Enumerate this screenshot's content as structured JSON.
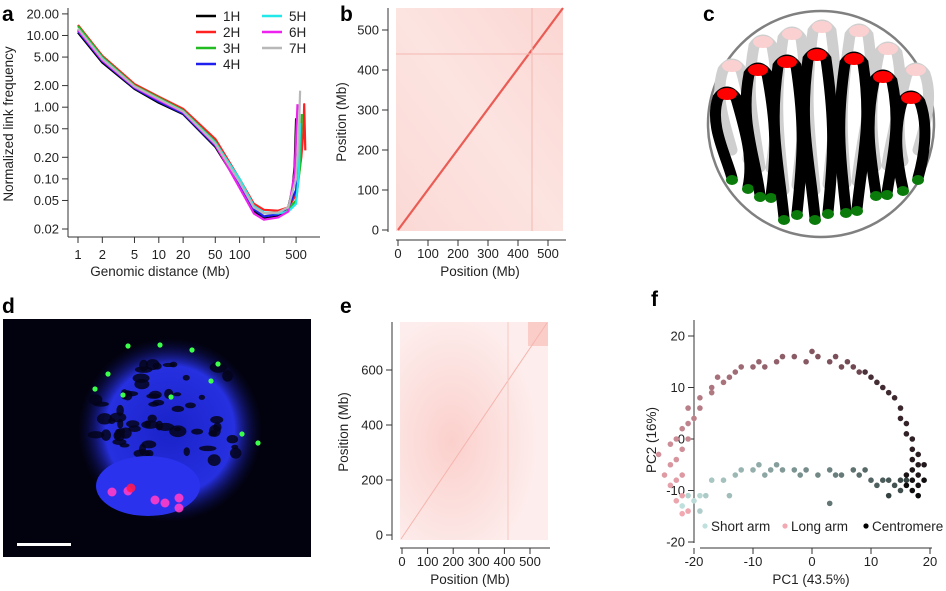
{
  "panel_labels": {
    "a": "a",
    "b": "b",
    "c": "c",
    "d": "d",
    "e": "e",
    "f": "f"
  },
  "chart_data": [
    {
      "id": "a",
      "type": "line",
      "xlabel": "Genomic distance (Mb)",
      "ylabel": "Normalized link frequency",
      "x_scale": "log",
      "y_scale": "log",
      "xlim": [
        0.9,
        800
      ],
      "ylim": [
        0.017,
        24
      ],
      "x_ticks": [
        1,
        2,
        5,
        10,
        20,
        50,
        100,
        200,
        500
      ],
      "x_tick_labels": [
        "1",
        "2",
        "5",
        "10",
        "20",
        "50",
        "100",
        "",
        "500"
      ],
      "y_ticks": [
        20,
        10,
        5,
        2,
        1,
        0.5,
        0.2,
        0.1,
        0.05,
        0.02
      ],
      "y_tick_labels": [
        "20.00",
        "10.00",
        "5.00",
        "2.00",
        "1.00",
        "0.50",
        "0.20",
        "0.10",
        "0.05",
        "0.02"
      ],
      "legend_position": "top-right",
      "series": [
        {
          "name": "1H",
          "color": "#000000",
          "x": [
            1,
            2,
            5,
            10,
            20,
            50,
            100,
            150,
            200,
            300,
            400,
            450,
            480,
            500
          ],
          "y": [
            11,
            4.2,
            1.8,
            1.15,
            0.8,
            0.28,
            0.08,
            0.036,
            0.028,
            0.03,
            0.04,
            0.07,
            0.15,
            0.7
          ]
        },
        {
          "name": "2H",
          "color": "#ff2020",
          "x": [
            1,
            2,
            5,
            10,
            20,
            50,
            100,
            150,
            200,
            300,
            400,
            500,
            580,
            620,
            630,
            650
          ],
          "y": [
            14,
            5.2,
            2.1,
            1.4,
            0.95,
            0.36,
            0.1,
            0.045,
            0.037,
            0.036,
            0.04,
            0.06,
            0.2,
            0.5,
            1.1,
            0.25
          ]
        },
        {
          "name": "3H",
          "color": "#22bb22",
          "x": [
            1,
            2,
            5,
            10,
            20,
            50,
            100,
            150,
            200,
            300,
            400,
            500,
            560,
            590
          ],
          "y": [
            13.5,
            5,
            2,
            1.35,
            0.9,
            0.33,
            0.09,
            0.04,
            0.033,
            0.034,
            0.038,
            0.05,
            0.15,
            0.8
          ]
        },
        {
          "name": "4H",
          "color": "#2020ee",
          "x": [
            1,
            2,
            5,
            10,
            20,
            50,
            100,
            150,
            200,
            300,
            400,
            500,
            540
          ],
          "y": [
            11.5,
            4.4,
            1.85,
            1.2,
            0.82,
            0.29,
            0.085,
            0.038,
            0.03,
            0.032,
            0.04,
            0.07,
            0.2
          ]
        },
        {
          "name": "5H",
          "color": "#22e8e8",
          "x": [
            1,
            2,
            5,
            10,
            20,
            50,
            100,
            150,
            200,
            300,
            400,
            500,
            540,
            560
          ],
          "y": [
            12.5,
            4.8,
            1.95,
            1.3,
            0.88,
            0.32,
            0.1,
            0.042,
            0.034,
            0.033,
            0.035,
            0.045,
            0.12,
            0.6
          ]
        },
        {
          "name": "6H",
          "color": "#ee22ee",
          "x": [
            1,
            2,
            5,
            10,
            20,
            50,
            100,
            150,
            200,
            300,
            400,
            480,
            520
          ],
          "y": [
            12,
            4.5,
            1.9,
            1.25,
            0.85,
            0.3,
            0.075,
            0.033,
            0.027,
            0.029,
            0.035,
            0.12,
            1.1
          ]
        },
        {
          "name": "7H",
          "color": "#b8b8b8",
          "x": [
            1,
            2,
            5,
            10,
            20,
            50,
            100,
            150,
            200,
            300,
            400,
            500,
            540,
            560
          ],
          "y": [
            12.5,
            4.7,
            1.95,
            1.3,
            0.87,
            0.31,
            0.09,
            0.04,
            0.033,
            0.034,
            0.04,
            0.1,
            0.4,
            1.7
          ]
        }
      ]
    },
    {
      "id": "b",
      "type": "heatmap",
      "xlabel": "Position (Mb)",
      "ylabel": "Position (Mb)",
      "xlim": [
        0,
        555
      ],
      "ylim": [
        0,
        555
      ],
      "x_ticks": [
        0,
        100,
        200,
        300,
        400,
        500
      ],
      "y_ticks": [
        0,
        100,
        200,
        300,
        400,
        500
      ],
      "color": "#e83a32"
    },
    {
      "id": "e",
      "type": "heatmap",
      "xlabel": "Position (Mb)",
      "ylabel": "Position (Mb)",
      "xlim": [
        0,
        570
      ],
      "ylim": [
        0,
        770
      ],
      "x_ticks": [
        0,
        100,
        200,
        300,
        400,
        500
      ],
      "y_ticks": [
        0,
        200,
        400,
        600
      ],
      "color": "#f07068"
    },
    {
      "id": "f",
      "type": "scatter",
      "xlabel": "PC1 (43.5%)",
      "ylabel": "PC2 (16%)",
      "xlim": [
        -27,
        21
      ],
      "ylim": [
        -21,
        23
      ],
      "x_ticks": [
        -20,
        -10,
        0,
        10,
        20
      ],
      "y_ticks": [
        -20,
        -10,
        0,
        10,
        20
      ],
      "legend_position": "bottom",
      "series": [
        {
          "name": "Short arm",
          "color_start": "#bfe0dc",
          "color_end": "#334140",
          "points": [
            [
              -22,
              -13
            ],
            [
              -20,
              -12
            ],
            [
              -19,
              -11
            ],
            [
              -21,
              -11
            ],
            [
              -19,
              -14
            ],
            [
              -18,
              -11
            ],
            [
              -17,
              -8
            ],
            [
              -15,
              -8
            ],
            [
              -14,
              -11
            ],
            [
              -13,
              -7
            ],
            [
              -12,
              -6
            ],
            [
              -10,
              -6
            ],
            [
              -9,
              -5
            ],
            [
              -8,
              -7
            ],
            [
              -7,
              -6
            ],
            [
              -6,
              -5
            ],
            [
              -5,
              -6
            ],
            [
              -3,
              -6
            ],
            [
              -2,
              -7
            ],
            [
              -1,
              -6
            ],
            [
              1,
              -7
            ],
            [
              3,
              -6
            ],
            [
              4,
              -7
            ],
            [
              5,
              -7
            ],
            [
              3,
              -12.5
            ],
            [
              7,
              -6
            ],
            [
              8,
              -7
            ],
            [
              9,
              -6
            ],
            [
              10,
              -8
            ],
            [
              11,
              -9
            ],
            [
              12,
              -8
            ],
            [
              13,
              -8
            ],
            [
              14,
              -9
            ],
            [
              15,
              -10
            ],
            [
              15,
              -8
            ],
            [
              16,
              -8
            ],
            [
              13,
              -11
            ]
          ]
        },
        {
          "name": "Long arm",
          "color_start": "#f2a9b2",
          "color_end": "#6e4650",
          "points": [
            [
              -22,
              -14.5
            ],
            [
              -21,
              -14
            ],
            [
              -23,
              -12
            ],
            [
              -22,
              -11
            ],
            [
              -24,
              -9
            ],
            [
              -23,
              -8
            ],
            [
              -25,
              -7
            ],
            [
              -22,
              -7
            ],
            [
              -24,
              -5
            ],
            [
              -23,
              -4
            ],
            [
              -26,
              -3
            ],
            [
              -22,
              -2
            ],
            [
              -24,
              -1
            ],
            [
              -23,
              0
            ],
            [
              -21,
              0
            ],
            [
              -22,
              2
            ],
            [
              -21,
              3
            ],
            [
              -20,
              4
            ],
            [
              -21,
              6
            ],
            [
              -19,
              6
            ],
            [
              -19,
              8
            ],
            [
              -17,
              9
            ],
            [
              -17,
              10
            ],
            [
              -15,
              11
            ],
            [
              -16,
              12
            ],
            [
              -14,
              12
            ],
            [
              -13,
              13
            ],
            [
              -12,
              14
            ],
            [
              -10,
              14
            ],
            [
              -9,
              15
            ],
            [
              -8,
              14
            ],
            [
              -6,
              15
            ],
            [
              -5,
              16
            ],
            [
              -3,
              16
            ],
            [
              -1,
              15
            ],
            [
              0,
              17
            ],
            [
              1,
              16
            ],
            [
              3,
              15
            ],
            [
              4,
              16
            ],
            [
              5,
              14
            ],
            [
              6,
              15
            ],
            [
              7,
              14
            ],
            [
              8,
              13
            ]
          ]
        },
        {
          "name": "Centromere",
          "color_start": "#4a3038",
          "color_end": "#0a0a0a",
          "points": [
            [
              9,
              13
            ],
            [
              10,
              12
            ],
            [
              11,
              11
            ],
            [
              12,
              10
            ],
            [
              13,
              9
            ],
            [
              14,
              8
            ],
            [
              15,
              6
            ],
            [
              15,
              4
            ],
            [
              16,
              3
            ],
            [
              16,
              1
            ],
            [
              17,
              0
            ],
            [
              17,
              -2
            ],
            [
              18,
              -3
            ],
            [
              17,
              -4
            ],
            [
              18,
              -5
            ],
            [
              19,
              -5
            ],
            [
              17,
              -6
            ],
            [
              18,
              -7
            ],
            [
              16,
              -7
            ],
            [
              17,
              -8
            ],
            [
              18,
              -9
            ],
            [
              17,
              -10
            ],
            [
              19,
              -8
            ],
            [
              16,
              -9
            ],
            [
              18,
              -11
            ]
          ]
        }
      ]
    }
  ]
}
